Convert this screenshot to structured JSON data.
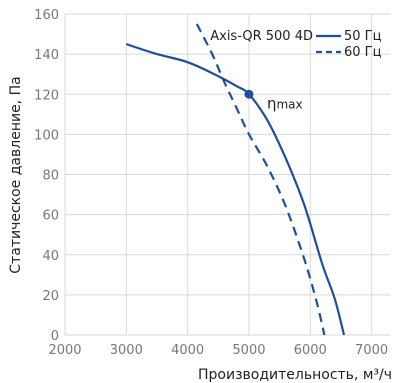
{
  "chart_data": {
    "type": "line",
    "xlabel": "Производительность, м³/ч",
    "ylabel": "Статическое давление, Па",
    "xlim": [
      2000,
      7300
    ],
    "ylim": [
      0,
      160
    ],
    "xticks": [
      2000,
      3000,
      4000,
      5000,
      6000,
      7000
    ],
    "yticks": [
      0,
      20,
      40,
      60,
      80,
      100,
      120,
      140,
      160
    ],
    "grid": true,
    "legend": {
      "placement": "top-right",
      "model": "Axis-QR 500 4D"
    },
    "series": [
      {
        "name": "50 Гц",
        "style": "solid",
        "color": "#1f4e9c",
        "points": [
          [
            3000,
            145
          ],
          [
            3500,
            140
          ],
          [
            4000,
            136
          ],
          [
            4500,
            129
          ],
          [
            4800,
            124
          ],
          [
            5000,
            120
          ],
          [
            5300,
            107
          ],
          [
            5600,
            88
          ],
          [
            5900,
            65
          ],
          [
            6200,
            35
          ],
          [
            6400,
            18
          ],
          [
            6550,
            0
          ]
        ]
      },
      {
        "name": "60 Гц",
        "style": "dashed",
        "color": "#1f4e9c",
        "points": [
          [
            4150,
            155
          ],
          [
            4400,
            140
          ],
          [
            4600,
            126
          ],
          [
            4800,
            113
          ],
          [
            5000,
            100
          ],
          [
            5300,
            84
          ],
          [
            5600,
            64
          ],
          [
            5900,
            38
          ],
          [
            6100,
            17
          ],
          [
            6230,
            0
          ]
        ]
      }
    ],
    "annotations": [
      {
        "label": "η",
        "sub": "max",
        "x": 5000,
        "y": 120
      }
    ]
  }
}
